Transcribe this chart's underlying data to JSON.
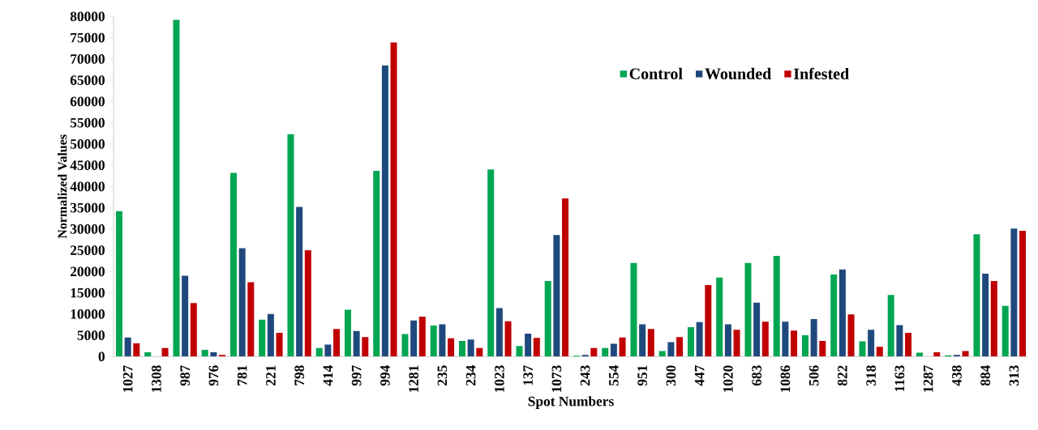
{
  "chart_data": {
    "type": "bar",
    "xlabel": "Spot Numbers",
    "ylabel": "Normalized Values",
    "categories": [
      "1027",
      "1308",
      "987",
      "976",
      "781",
      "221",
      "798",
      "414",
      "997",
      "994",
      "1281",
      "235",
      "234",
      "1023",
      "137",
      "1073",
      "243",
      "554",
      "951",
      "300",
      "447",
      "1020",
      "683",
      "1086",
      "506",
      "822",
      "318",
      "1163",
      "1287",
      "438",
      "884",
      "313"
    ],
    "series": [
      {
        "name": "Control",
        "color": "#00a651",
        "values": [
          34200,
          1000,
          79200,
          1600,
          43200,
          8700,
          52300,
          2000,
          11000,
          43700,
          5300,
          7300,
          3700,
          44000,
          2500,
          17800,
          200,
          2000,
          22000,
          1300,
          6900,
          18600,
          22000,
          23700,
          5000,
          19300,
          3600,
          14500,
          900,
          300,
          28800,
          11900
        ]
      },
      {
        "name": "Wounded",
        "color": "#1f497d",
        "values": [
          4500,
          null,
          19000,
          1000,
          25500,
          10000,
          35200,
          2800,
          6000,
          68500,
          8500,
          7600,
          4000,
          11400,
          5400,
          28600,
          400,
          3000,
          7600,
          3400,
          8100,
          7600,
          12700,
          8200,
          8800,
          20500,
          6300,
          7400,
          null,
          400,
          19500,
          30100
        ]
      },
      {
        "name": "Infested",
        "color": "#c00000",
        "values": [
          3100,
          2000,
          12600,
          400,
          17500,
          5600,
          25000,
          6500,
          4600,
          73900,
          9400,
          4300,
          2000,
          8300,
          4400,
          37200,
          2000,
          4500,
          6500,
          4600,
          16800,
          6300,
          8200,
          6100,
          3700,
          9900,
          2300,
          5600,
          1000,
          1300,
          17800,
          29600
        ]
      }
    ],
    "ylim": [
      0,
      80000
    ],
    "yticks": [
      0,
      5000,
      10000,
      15000,
      20000,
      25000,
      30000,
      35000,
      40000,
      45000,
      50000,
      55000,
      60000,
      65000,
      70000,
      75000,
      80000
    ],
    "legend": "top right",
    "grid": false
  }
}
